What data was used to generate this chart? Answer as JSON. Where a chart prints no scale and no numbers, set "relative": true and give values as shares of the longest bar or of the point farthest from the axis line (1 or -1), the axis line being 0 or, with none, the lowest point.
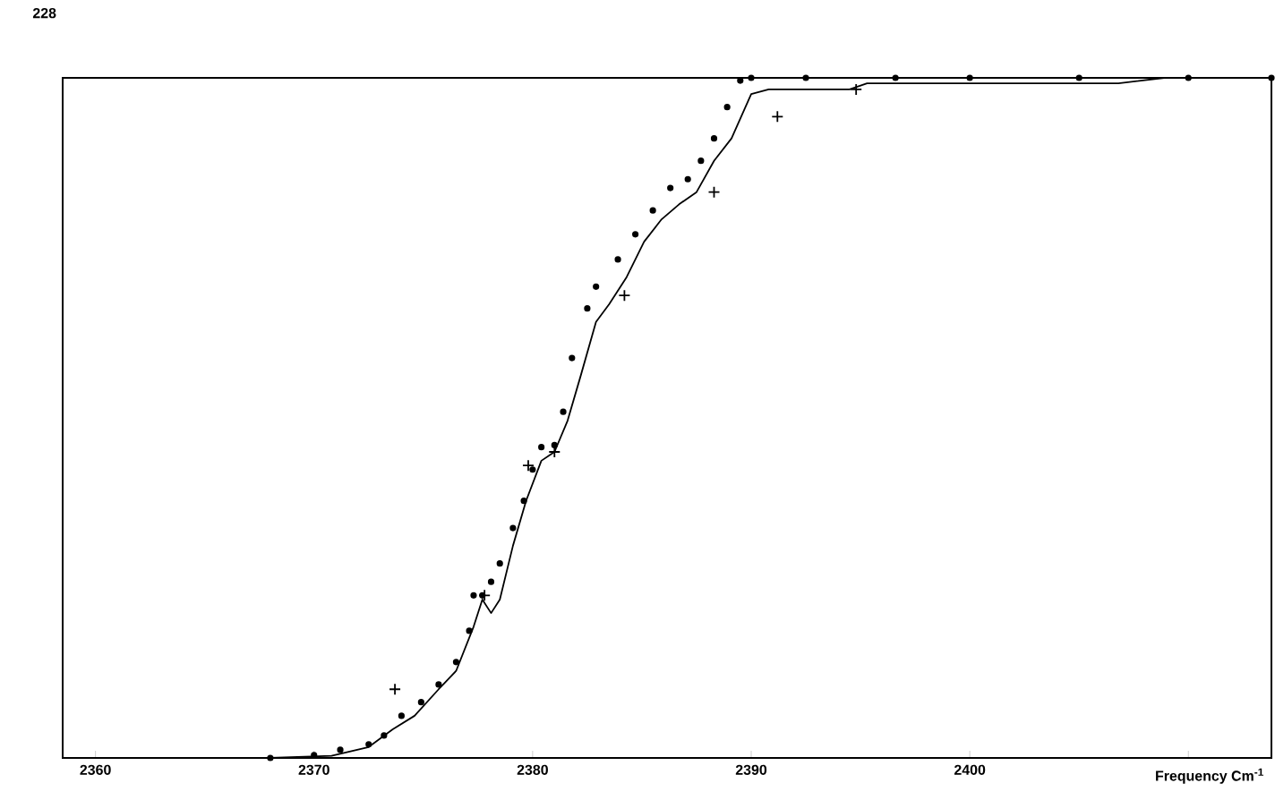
{
  "chart_data": {
    "type": "line",
    "xlabel": "Frequency Cm$^{-1}$",
    "relative": true,
    "xlim": [
      2358.5,
      2413.8
    ],
    "xticks": [
      2360,
      2370,
      2380,
      2390,
      2400,
      {
        "value": 2410,
        "label": null
      }
    ],
    "annotations": [
      "228"
    ],
    "series": [
      {
        "type": "scatter",
        "marker": "circle",
        "color": "#000000",
        "x": [
          2368,
          2370,
          2371.2,
          2372.5,
          2373.2,
          2374,
          2374.9,
          2375.7,
          2376.5,
          2377.1,
          2377.3,
          2377.7,
          2378.1,
          2378.5,
          2379.1,
          2379.6,
          2380,
          2380.4,
          2381,
          2381.4,
          2381.8,
          2382.5,
          2382.9,
          2383.9,
          2384.7,
          2385.5,
          2386.3,
          2387.1,
          2387.7,
          2388.3,
          2388.9,
          2389.5,
          2390,
          2392.5,
          2396.6,
          2400,
          2405,
          2410,
          2413.8
        ],
        "values": [
          0,
          0.004,
          0.012,
          0.02,
          0.033,
          0.062,
          0.082,
          0.108,
          0.141,
          0.187,
          0.239,
          0.239,
          0.259,
          0.286,
          0.338,
          0.378,
          0.424,
          0.457,
          0.46,
          0.509,
          0.588,
          0.661,
          0.693,
          0.733,
          0.77,
          0.805,
          0.838,
          0.851,
          0.878,
          0.911,
          0.957,
          0.996,
          1,
          1,
          1,
          1,
          1,
          1,
          1
        ]
      },
      {
        "marker": "none",
        "line_style": "solid",
        "color": "#000000",
        "x": [
          2368,
          2370.8,
          2372.5,
          2373.6,
          2374.6,
          2375.7,
          2376.5,
          2377.3,
          2377.7,
          2378.1,
          2378.5,
          2379.1,
          2379.7,
          2380.4,
          2381,
          2381.6,
          2382.2,
          2382.9,
          2383.5,
          2384.3,
          2385.1,
          2385.9,
          2386.7,
          2387.5,
          2388.3,
          2389.1,
          2390,
          2390.8,
          2394.5,
          2395.3,
          2406.8,
          2408.9,
          2413.8
        ],
        "values": [
          0,
          0.003,
          0.016,
          0.042,
          0.062,
          0.101,
          0.128,
          0.193,
          0.233,
          0.213,
          0.233,
          0.312,
          0.378,
          0.437,
          0.45,
          0.496,
          0.562,
          0.641,
          0.667,
          0.707,
          0.759,
          0.792,
          0.814,
          0.832,
          0.878,
          0.911,
          0.976,
          0.983,
          0.983,
          0.992,
          0.992,
          1,
          1
        ]
      },
      {
        "type": "scatter",
        "marker": "cross",
        "color": "#000000",
        "x": [
          2373.7,
          2377.8,
          2379.8,
          2381.0,
          2384.2,
          2388.3,
          2391.2,
          2394.8
        ],
        "values": [
          0.101,
          0.239,
          0.43,
          0.45,
          0.68,
          0.832,
          0.943,
          0.983
        ]
      }
    ]
  }
}
